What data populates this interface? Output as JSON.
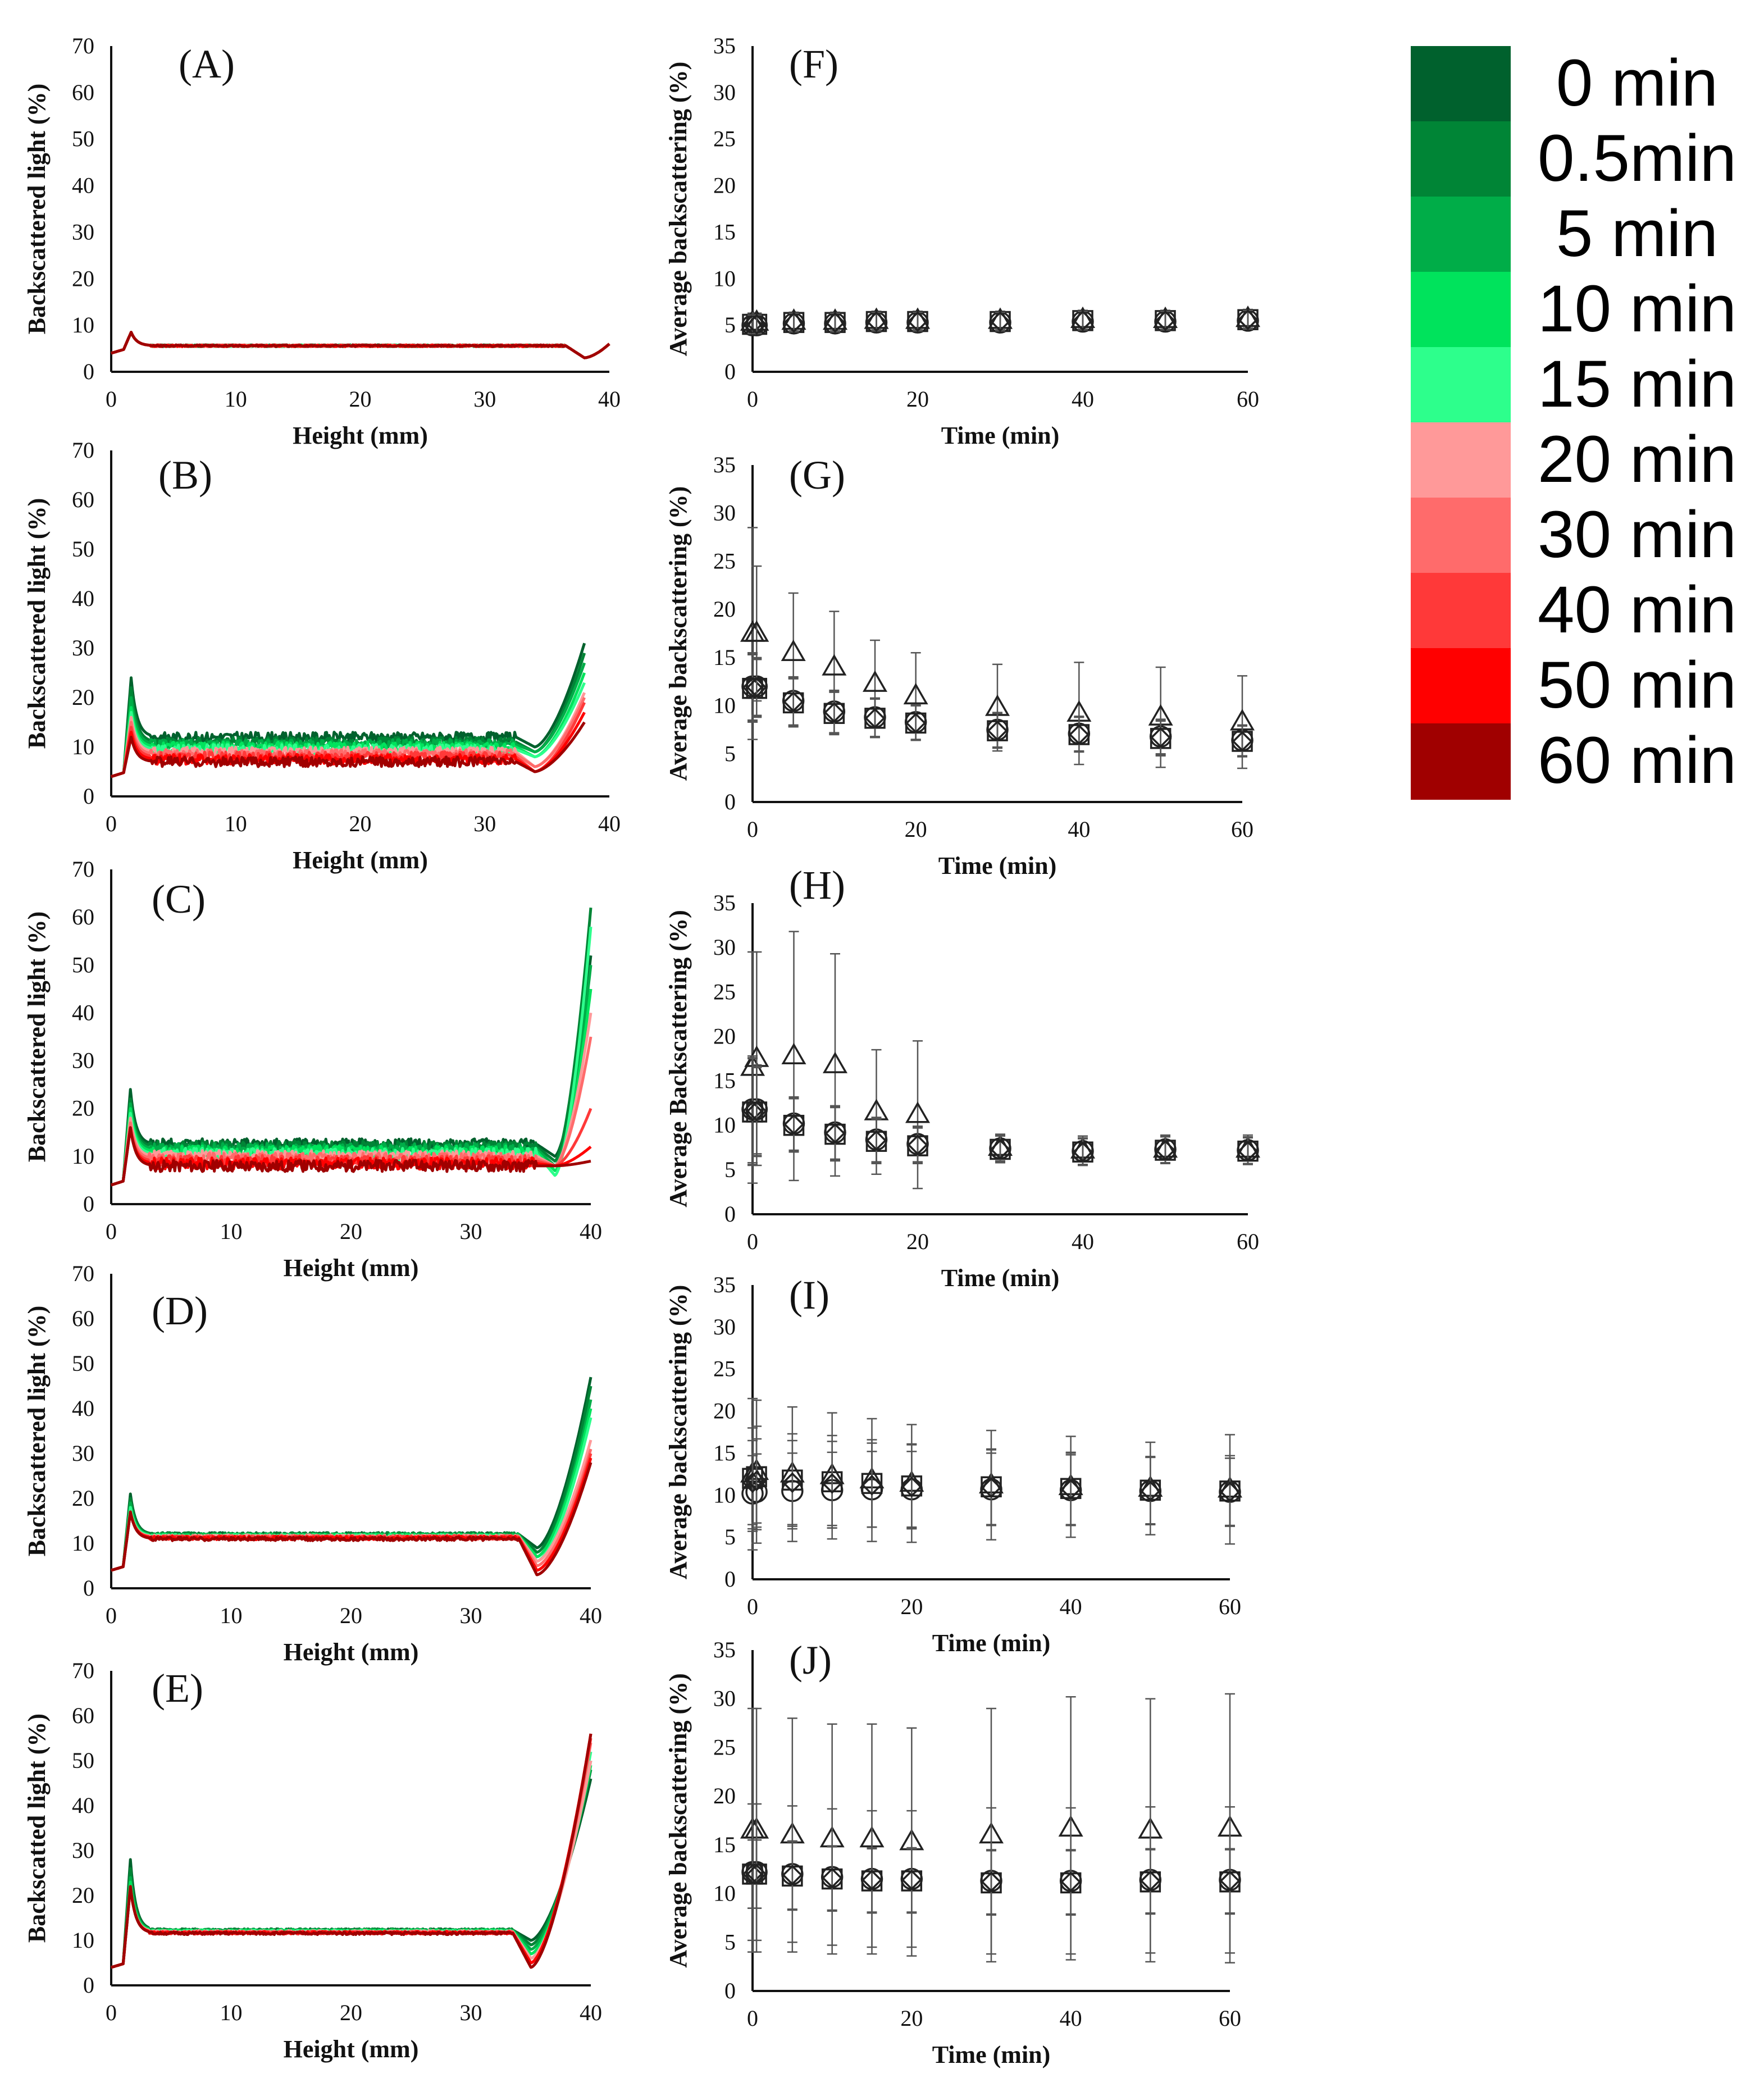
{
  "legend": {
    "entries": [
      "0 min",
      "0.5min",
      "5 min",
      "10 min",
      "15 min",
      "20 min",
      "30 min",
      "40 min",
      "50 min",
      "60 min"
    ],
    "colors": [
      "#00612d",
      "#008536",
      "#00ad48",
      "#00e35c",
      "#2dff8c",
      "#ff9999",
      "#ff6b6b",
      "#ff3939",
      "#ff0000",
      "#a00000"
    ]
  },
  "chart_data": [
    {
      "id": "A",
      "type": "line",
      "label": "(A)",
      "xlabel": "Height (mm)",
      "ylabel": "Backscattered light (%)",
      "xlim": [
        0,
        40
      ],
      "ylim": [
        0,
        70
      ],
      "xticks": [
        "0",
        "10",
        "20",
        "30",
        "40"
      ],
      "yticks": [
        "0",
        "10",
        "20",
        "30",
        "40",
        "50",
        "60",
        "70"
      ],
      "profile": {
        "base": [
          5.6,
          5.6,
          5.6,
          5.6,
          5.6,
          5.6,
          5.6,
          5.6,
          5.6,
          5.6
        ],
        "peak": [
          8.5,
          8.5,
          8.5,
          8.5,
          8.5,
          8.5,
          8.5,
          8.5,
          8.5,
          8.5
        ],
        "end": [
          6,
          6,
          6,
          6,
          6,
          6,
          6,
          6,
          6,
          6
        ],
        "dip_at": 38,
        "dip": [
          3,
          3,
          3,
          3,
          3,
          3,
          3,
          3,
          3,
          3
        ],
        "noise": 0.2,
        "xmax": 40
      }
    },
    {
      "id": "F",
      "type": "scatter",
      "label": "(F)",
      "xlabel": "Time (min)",
      "ylabel": "Average backscattering (%)",
      "xlim": [
        0,
        60
      ],
      "ylim": [
        0,
        35
      ],
      "xticks": [
        "0",
        "20",
        "40",
        "60"
      ],
      "yticks": [
        "0",
        "5",
        "10",
        "15",
        "20",
        "25",
        "30",
        "35"
      ],
      "x": [
        0,
        0.5,
        5,
        10,
        15,
        20,
        30,
        40,
        50,
        60
      ],
      "series": [
        {
          "name": "triangle",
          "marker": "triangle",
          "values": [
            5.3,
            5.3,
            5.4,
            5.4,
            5.5,
            5.5,
            5.5,
            5.6,
            5.6,
            5.7
          ],
          "err": [
            1,
            1,
            1,
            1,
            1,
            1,
            1,
            1,
            1,
            1
          ]
        },
        {
          "name": "square",
          "marker": "square",
          "values": [
            5.1,
            5.1,
            5.3,
            5.3,
            5.4,
            5.4,
            5.4,
            5.5,
            5.5,
            5.6
          ],
          "err": [
            1,
            1,
            1,
            1,
            1,
            1,
            1,
            1,
            1,
            1
          ]
        },
        {
          "name": "circle",
          "marker": "circle",
          "values": [
            5.0,
            5.0,
            5.2,
            5.2,
            5.3,
            5.3,
            5.3,
            5.4,
            5.4,
            5.5
          ],
          "err": [
            1,
            1,
            1,
            1,
            1,
            1,
            1,
            1,
            1,
            1
          ]
        },
        {
          "name": "diamond",
          "marker": "diamond",
          "values": [
            5.1,
            5.1,
            5.3,
            5.3,
            5.4,
            5.4,
            5.4,
            5.5,
            5.5,
            5.6
          ],
          "err": [
            1,
            1,
            1,
            1,
            1,
            1,
            1,
            1,
            1,
            1
          ]
        }
      ]
    },
    {
      "id": "B",
      "type": "line",
      "label": "(B)",
      "xlabel": "Height (mm)",
      "ylabel": "Backscattered light (%)",
      "xlim": [
        0,
        40
      ],
      "ylim": [
        0,
        70
      ],
      "xticks": [
        "0",
        "10",
        "20",
        "30",
        "40"
      ],
      "yticks": [
        "0",
        "10",
        "20",
        "30",
        "40",
        "50",
        "60",
        "70"
      ],
      "profile": {
        "base": [
          12,
          11,
          10.5,
          10,
          9.5,
          9,
          8.5,
          8,
          7.5,
          7
        ],
        "peak": [
          24,
          22,
          20,
          18,
          17,
          16,
          15,
          14,
          13,
          12
        ],
        "end": [
          31,
          29,
          27,
          25,
          23,
          21,
          20,
          19,
          17,
          15
        ],
        "dip_at": 34,
        "dip": [
          10,
          9,
          9,
          8,
          8,
          6,
          6,
          5,
          5,
          5
        ],
        "noise": 1.0,
        "xmax": 38
      }
    },
    {
      "id": "G",
      "type": "scatter",
      "label": "(G)",
      "xlabel": "Time (min)",
      "ylabel": "Average backscattering (%)",
      "xlim": [
        0,
        60
      ],
      "ylim": [
        0,
        35
      ],
      "xticks": [
        "0",
        "20",
        "40",
        "60"
      ],
      "yticks": [
        "0",
        "5",
        "10",
        "15",
        "20",
        "25",
        "30",
        "35"
      ],
      "x": [
        0,
        0.5,
        5,
        10,
        15,
        20,
        30,
        40,
        50,
        60
      ],
      "series": [
        {
          "name": "triangle",
          "marker": "triangle",
          "values": [
            17.5,
            17.5,
            15.5,
            14.0,
            12.3,
            11.0,
            9.8,
            9.2,
            8.8,
            8.3
          ],
          "err": [
            11,
            7,
            6.2,
            5.8,
            4.5,
            4.5,
            4.5,
            5.3,
            5.2,
            4.8
          ]
        },
        {
          "name": "square",
          "marker": "square",
          "values": [
            11.8,
            11.8,
            10.3,
            9.2,
            8.7,
            8.2,
            7.4,
            7.0,
            6.6,
            6.3
          ],
          "err": [
            3.5,
            3,
            2.5,
            2.2,
            2,
            1.8,
            1.8,
            1.8,
            1.8,
            1.6
          ]
        },
        {
          "name": "circle",
          "marker": "circle",
          "values": [
            12.0,
            12.0,
            10.5,
            9.4,
            8.8,
            8.3,
            7.5,
            7.1,
            6.8,
            6.4
          ],
          "err": [
            3.5,
            3,
            2.5,
            2.2,
            2,
            1.8,
            1.8,
            1.8,
            1.8,
            1.6
          ]
        },
        {
          "name": "diamond",
          "marker": "diamond",
          "values": [
            11.9,
            11.9,
            10.4,
            9.3,
            8.7,
            8.2,
            7.4,
            7.0,
            6.7,
            6.3
          ],
          "err": [
            3.5,
            3,
            2.5,
            2.2,
            2,
            1.8,
            1.8,
            1.8,
            1.8,
            1.6
          ]
        }
      ]
    },
    {
      "id": "C",
      "type": "line",
      "label": "(C)",
      "xlabel": "Height (mm)",
      "ylabel": "Backscattered light (%)",
      "xlim": [
        0,
        40
      ],
      "ylim": [
        0,
        70
      ],
      "xticks": [
        "0",
        "10",
        "20",
        "30",
        "40"
      ],
      "yticks": [
        "0",
        "10",
        "20",
        "30",
        "40",
        "50",
        "60",
        "70"
      ],
      "profile": {
        "base": [
          12.5,
          12,
          11.5,
          11,
          10.5,
          10,
          9.5,
          9,
          8.5,
          8
        ],
        "peak": [
          24,
          22,
          21,
          20,
          19,
          18,
          17,
          16,
          16,
          16
        ],
        "end": [
          52,
          62,
          50,
          45,
          58,
          40,
          35,
          20,
          12,
          9
        ],
        "dip_at": 37,
        "dip": [
          10,
          9,
          8,
          7,
          6,
          8,
          8,
          8,
          8,
          8
        ],
        "noise": 1.2,
        "xmax": 40
      }
    },
    {
      "id": "H",
      "type": "scatter",
      "label": "(H)",
      "xlabel": "Time (min)",
      "ylabel": "Average Backscattering (%)",
      "xlim": [
        0,
        60
      ],
      "ylim": [
        0,
        35
      ],
      "xticks": [
        "0",
        "20",
        "40",
        "60"
      ],
      "yticks": [
        "0",
        "5",
        "10",
        "15",
        "20",
        "25",
        "30",
        "35"
      ],
      "x": [
        0,
        0.5,
        5,
        10,
        15,
        20,
        30,
        40,
        50,
        60
      ],
      "series": [
        {
          "name": "triangle",
          "marker": "triangle",
          "values": [
            16.5,
            17.5,
            17.8,
            16.8,
            11.5,
            11.2,
            7.5,
            7.2,
            7.3,
            7.3
          ],
          "err": [
            13,
            12,
            14,
            12.5,
            7,
            8.3,
            1.5,
            1.6,
            1.6,
            1.6
          ]
        },
        {
          "name": "square",
          "marker": "square",
          "values": [
            11.5,
            11.5,
            10.0,
            9.0,
            8.2,
            7.7,
            7.3,
            7.0,
            7.2,
            7.1
          ],
          "err": [
            6,
            5,
            3,
            3,
            2.5,
            2,
            1.5,
            1.5,
            1.5,
            1.5
          ]
        },
        {
          "name": "circle",
          "marker": "circle",
          "values": [
            11.8,
            11.8,
            10.2,
            9.2,
            8.4,
            7.9,
            7.4,
            7.1,
            7.3,
            7.2
          ],
          "err": [
            6,
            5,
            3,
            3,
            2.5,
            2,
            1.5,
            1.5,
            1.5,
            1.5
          ]
        },
        {
          "name": "diamond",
          "marker": "diamond",
          "values": [
            11.6,
            11.6,
            10.1,
            9.1,
            8.3,
            7.8,
            7.3,
            7.0,
            7.2,
            7.1
          ],
          "err": [
            6,
            5,
            3,
            3,
            2.5,
            2,
            1.5,
            1.5,
            1.5,
            1.5
          ]
        }
      ]
    },
    {
      "id": "D",
      "type": "line",
      "label": "(D)",
      "xlabel": "Height (mm)",
      "ylabel": "Backscattered light (%)",
      "xlim": [
        0,
        40
      ],
      "ylim": [
        0,
        70
      ],
      "xticks": [
        "0",
        "10",
        "20",
        "30",
        "40"
      ],
      "yticks": [
        "0",
        "10",
        "20",
        "30",
        "40",
        "50",
        "60",
        "70"
      ],
      "profile": {
        "base": [
          12,
          12,
          11.8,
          11.7,
          11.6,
          11.5,
          11.4,
          11.3,
          11.2,
          11
        ],
        "peak": [
          21,
          20,
          19,
          18,
          18,
          17,
          17,
          17,
          17,
          17
        ],
        "end": [
          47,
          45,
          42,
          40,
          38,
          33,
          31,
          30,
          29,
          28
        ],
        "dip_at": 35.5,
        "dip": [
          9,
          8,
          7,
          7,
          6,
          6,
          5,
          4,
          4,
          3
        ],
        "noise": 0.4,
        "xmax": 40
      }
    },
    {
      "id": "I",
      "type": "scatter",
      "label": "(I)",
      "xlabel": "Time (min)",
      "ylabel": "Average backscattering (%)",
      "xlim": [
        0,
        60
      ],
      "ylim": [
        0,
        35
      ],
      "xticks": [
        "0",
        "20",
        "40",
        "60"
      ],
      "yticks": [
        "0",
        "5",
        "10",
        "15",
        "20",
        "25",
        "30",
        "35"
      ],
      "x": [
        0,
        0.5,
        5,
        10,
        15,
        20,
        30,
        40,
        50,
        60
      ],
      "series": [
        {
          "name": "triangle",
          "marker": "triangle",
          "values": [
            12.5,
            12.8,
            12.5,
            12.3,
            11.8,
            11.4,
            11.2,
            11.0,
            10.8,
            10.7
          ],
          "err": [
            9,
            8.5,
            8,
            7.5,
            7.3,
            7,
            6.5,
            6,
            5.5,
            6.5
          ]
        },
        {
          "name": "square",
          "marker": "square",
          "values": [
            12.0,
            12.2,
            11.8,
            11.6,
            11.4,
            11.1,
            11.0,
            10.8,
            10.6,
            10.5
          ],
          "err": [
            6,
            6,
            5.5,
            5.5,
            5.2,
            5,
            4.5,
            4.3,
            4,
            4.2
          ]
        },
        {
          "name": "circle",
          "marker": "circle",
          "values": [
            10.2,
            10.4,
            10.5,
            10.6,
            10.7,
            10.7,
            10.7,
            10.6,
            10.5,
            10.4
          ],
          "err": [
            4.5,
            4.5,
            4.5,
            4.5,
            4.5,
            4.5,
            4.3,
            4.2,
            4,
            4
          ]
        },
        {
          "name": "diamond",
          "marker": "diamond",
          "values": [
            11.5,
            11.7,
            11.5,
            11.4,
            11.2,
            11.0,
            10.9,
            10.7,
            10.5,
            10.4
          ],
          "err": [
            5,
            5,
            5,
            5,
            5,
            5,
            4.5,
            4.3,
            4,
            4
          ]
        }
      ]
    },
    {
      "id": "E",
      "type": "line",
      "label": "(E)",
      "xlabel": "Height (mm)",
      "ylabel": "Backscatted light (%)",
      "xlim": [
        0,
        40
      ],
      "ylim": [
        0,
        70
      ],
      "xticks": [
        "0",
        "10",
        "20",
        "30",
        "40"
      ],
      "yticks": [
        "0",
        "10",
        "20",
        "30",
        "40",
        "50",
        "60",
        "70"
      ],
      "profile": {
        "base": [
          12.3,
          12.3,
          12.2,
          12.1,
          12,
          11.9,
          11.8,
          11.7,
          11.7,
          11.6
        ],
        "peak": [
          28,
          26,
          24,
          23,
          22,
          22,
          22,
          22,
          22,
          22
        ],
        "end": [
          46,
          48,
          50,
          49,
          52,
          50,
          54,
          55,
          56,
          56
        ],
        "dip_at": 35,
        "dip": [
          10,
          9,
          8,
          7,
          6,
          6,
          5,
          5,
          5,
          4
        ],
        "noise": 0.3,
        "xmax": 40
      }
    },
    {
      "id": "J",
      "type": "scatter",
      "label": "(J)",
      "xlabel": "Time (min)",
      "ylabel": "Average backscattering (%)",
      "xlim": [
        0,
        60
      ],
      "ylim": [
        0,
        35
      ],
      "xticks": [
        "0",
        "20",
        "40",
        "60"
      ],
      "yticks": [
        "0",
        "5",
        "10",
        "15",
        "20",
        "25",
        "30",
        "35"
      ],
      "x": [
        0,
        0.5,
        5,
        10,
        15,
        20,
        30,
        40,
        50,
        60
      ],
      "series": [
        {
          "name": "triangle",
          "marker": "triangle",
          "values": [
            16.5,
            16.5,
            16.0,
            15.6,
            15.6,
            15.3,
            16.0,
            16.7,
            16.5,
            16.7
          ],
          "err": [
            12.5,
            12.5,
            12,
            11.8,
            11.8,
            11.7,
            13,
            13.5,
            13.5,
            13.8
          ]
        },
        {
          "name": "square",
          "marker": "square",
          "values": [
            12.0,
            12.0,
            11.8,
            11.5,
            11.3,
            11.3,
            11.1,
            11.1,
            11.2,
            11.2
          ],
          "err": [
            3.5,
            3.5,
            3.5,
            3.3,
            3.3,
            3.3,
            3.3,
            3.3,
            3.3,
            3.3
          ]
        },
        {
          "name": "circle",
          "marker": "circle",
          "values": [
            12.2,
            12.2,
            12.0,
            11.7,
            11.5,
            11.5,
            11.3,
            11.3,
            11.4,
            11.4
          ],
          "err": [
            7,
            7,
            7,
            7,
            7,
            7,
            7.5,
            7.5,
            7.5,
            7.5
          ]
        },
        {
          "name": "diamond",
          "marker": "diamond",
          "values": [
            12.0,
            12.0,
            11.9,
            11.6,
            11.4,
            11.4,
            11.2,
            11.2,
            11.3,
            11.3
          ],
          "err": [
            3.5,
            3.5,
            3.5,
            3.3,
            3.3,
            3.3,
            3.3,
            3.3,
            3.3,
            3.3
          ]
        }
      ]
    }
  ]
}
